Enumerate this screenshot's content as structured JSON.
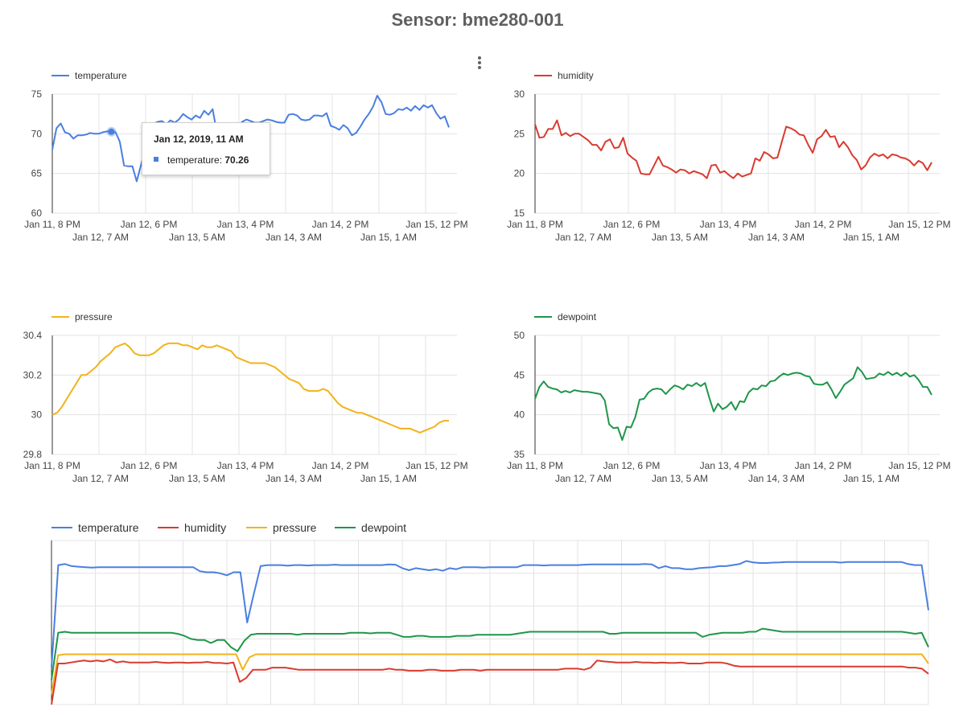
{
  "title": "Sensor: bme280-001",
  "menu_icon": "more-vert-icon",
  "tooltip": {
    "title": "Jan 12, 2019, 11 AM",
    "series": "temperature",
    "value": "70.26"
  },
  "colors": {
    "temperature": "#4a7fe0",
    "humidity": "#d93b30",
    "pressure": "#f2b31b",
    "dewpoint": "#20964a",
    "grid": "#e3e3e3",
    "axis": "#333333"
  },
  "chart_data": [
    {
      "type": "line",
      "legend": [
        "temperature"
      ],
      "x_ticks_top": [
        "Jan 11, 8 PM",
        "Jan 12, 6 PM",
        "Jan 13, 4 PM",
        "Jan 14, 2 PM",
        "Jan 15, 12 PM"
      ],
      "x_ticks_bottom": [
        "Jan 12, 7 AM",
        "Jan 13, 5 AM",
        "Jan 14, 3 AM",
        "Jan 15, 1 AM"
      ],
      "y_ticks": [
        "75",
        "70",
        "65",
        "60"
      ],
      "ylim": [
        60,
        75
      ],
      "grid": true,
      "series": [
        {
          "name": "temperature",
          "values": [
            68.0,
            70.7,
            71.3,
            70.2,
            70.0,
            69.4,
            69.8,
            69.8,
            69.9,
            70.1,
            70.0,
            70.0,
            70.2,
            70.3,
            70.26,
            70.2,
            69.0,
            66.0,
            65.9,
            65.9,
            64.0,
            66.0,
            68.0,
            70.5,
            71.3,
            71.5,
            71.6,
            71.2,
            71.7,
            71.4,
            71.8,
            72.5,
            72.1,
            71.8,
            72.3,
            72.0,
            72.9,
            72.4,
            73.1,
            70.2,
            70.0,
            69.9,
            70.0,
            70.3,
            71.0,
            71.5,
            71.8,
            71.6,
            71.4,
            71.4,
            71.6,
            71.8,
            71.7,
            71.5,
            71.4,
            71.4,
            72.4,
            72.5,
            72.3,
            71.8,
            71.7,
            71.8,
            72.3,
            72.3,
            72.2,
            72.6,
            71.0,
            70.8,
            70.5,
            71.1,
            70.7,
            69.8,
            70.1,
            70.9,
            71.8,
            72.5,
            73.4,
            74.8,
            74.0,
            72.5,
            72.4,
            72.6,
            73.1,
            73.0,
            73.3,
            72.9,
            73.5,
            73.0,
            73.6,
            73.3,
            73.6,
            72.6,
            71.9,
            72.2,
            70.8
          ]
        }
      ]
    },
    {
      "type": "line",
      "legend": [
        "humidity"
      ],
      "x_ticks_top": [
        "Jan 11, 8 PM",
        "Jan 12, 6 PM",
        "Jan 13, 4 PM",
        "Jan 14, 2 PM",
        "Jan 15, 12 PM"
      ],
      "x_ticks_bottom": [
        "Jan 12, 7 AM",
        "Jan 13, 5 AM",
        "Jan 14, 3 AM",
        "Jan 15, 1 AM"
      ],
      "y_ticks": [
        "30",
        "25",
        "20",
        "15"
      ],
      "ylim": [
        15,
        30
      ],
      "grid": true,
      "series": [
        {
          "name": "humidity",
          "values": [
            26.2,
            24.5,
            24.6,
            25.6,
            25.6,
            26.7,
            24.8,
            25.1,
            24.7,
            25.0,
            25.0,
            24.6,
            24.2,
            23.6,
            23.6,
            22.9,
            24.0,
            24.3,
            23.2,
            23.3,
            24.5,
            22.5,
            22.0,
            21.6,
            20.0,
            19.9,
            19.9,
            21.0,
            22.1,
            21.0,
            20.8,
            20.5,
            20.1,
            20.5,
            20.4,
            20.0,
            20.3,
            20.1,
            19.9,
            19.4,
            21.0,
            21.1,
            20.1,
            20.3,
            19.8,
            19.4,
            20.0,
            19.6,
            19.8,
            20.0,
            21.9,
            21.6,
            22.7,
            22.4,
            21.9,
            22.0,
            24.0,
            25.9,
            25.7,
            25.4,
            24.9,
            24.8,
            23.6,
            22.6,
            24.3,
            24.7,
            25.5,
            24.6,
            24.7,
            23.3,
            24.0,
            23.3,
            22.3,
            21.7,
            20.5,
            21.0,
            22.0,
            22.5,
            22.2,
            22.4,
            21.9,
            22.4,
            22.3,
            22.0,
            21.9,
            21.6,
            21.0,
            21.6,
            21.3,
            20.4,
            21.4
          ]
        }
      ]
    },
    {
      "type": "line",
      "legend": [
        "pressure"
      ],
      "x_ticks_top": [
        "Jan 11, 8 PM",
        "Jan 12, 6 PM",
        "Jan 13, 4 PM",
        "Jan 14, 2 PM",
        "Jan 15, 12 PM"
      ],
      "x_ticks_bottom": [
        "Jan 12, 7 AM",
        "Jan 13, 5 AM",
        "Jan 14, 3 AM",
        "Jan 15, 1 AM"
      ],
      "y_ticks": [
        "30.4",
        "30.2",
        "30",
        "29.8"
      ],
      "ylim": [
        29.8,
        30.4
      ],
      "grid": true,
      "series": [
        {
          "name": "pressure",
          "values": [
            30.0,
            30.01,
            30.04,
            30.08,
            30.12,
            30.16,
            30.2,
            30.2,
            30.22,
            30.24,
            30.27,
            30.29,
            30.31,
            30.34,
            30.35,
            30.36,
            30.34,
            30.31,
            30.3,
            30.3,
            30.3,
            30.31,
            30.33,
            30.35,
            30.36,
            30.36,
            30.36,
            30.35,
            30.35,
            30.34,
            30.33,
            30.35,
            30.34,
            30.34,
            30.35,
            30.34,
            30.33,
            30.32,
            30.29,
            30.28,
            30.27,
            30.26,
            30.26,
            30.26,
            30.26,
            30.25,
            30.24,
            30.22,
            30.2,
            30.18,
            30.17,
            30.16,
            30.13,
            30.12,
            30.12,
            30.12,
            30.13,
            30.12,
            30.09,
            30.06,
            30.04,
            30.03,
            30.02,
            30.01,
            30.01,
            30.0,
            29.99,
            29.98,
            29.97,
            29.96,
            29.95,
            29.94,
            29.93,
            29.93,
            29.93,
            29.92,
            29.91,
            29.92,
            29.93,
            29.94,
            29.96,
            29.97,
            29.97
          ]
        }
      ]
    },
    {
      "type": "line",
      "legend": [
        "dewpoint"
      ],
      "x_ticks_top": [
        "Jan 11, 8 PM",
        "Jan 12, 6 PM",
        "Jan 13, 4 PM",
        "Jan 14, 2 PM",
        "Jan 15, 12 PM"
      ],
      "x_ticks_bottom": [
        "Jan 12, 7 AM",
        "Jan 13, 5 AM",
        "Jan 14, 3 AM",
        "Jan 15, 1 AM"
      ],
      "y_ticks": [
        "50",
        "45",
        "40",
        "35"
      ],
      "ylim": [
        35,
        50
      ],
      "grid": true,
      "series": [
        {
          "name": "dewpoint",
          "values": [
            42.0,
            43.5,
            44.2,
            43.5,
            43.3,
            43.2,
            42.8,
            43.0,
            42.8,
            43.1,
            43.0,
            42.9,
            42.9,
            42.8,
            42.7,
            42.6,
            41.8,
            38.8,
            38.3,
            38.4,
            36.8,
            38.5,
            38.4,
            39.7,
            41.9,
            42.0,
            42.8,
            43.2,
            43.3,
            43.2,
            42.6,
            43.2,
            43.7,
            43.5,
            43.2,
            43.8,
            43.6,
            44.0,
            43.6,
            44.0,
            42.1,
            40.4,
            41.4,
            40.7,
            41.0,
            41.6,
            40.6,
            41.7,
            41.6,
            42.8,
            43.3,
            43.2,
            43.7,
            43.6,
            44.2,
            44.3,
            44.8,
            45.2,
            45.0,
            45.2,
            45.3,
            45.2,
            44.9,
            44.8,
            43.9,
            43.8,
            43.8,
            44.1,
            43.2,
            42.1,
            42.9,
            43.8,
            44.2,
            44.6,
            46.0,
            45.4,
            44.5,
            44.6,
            44.7,
            45.2,
            45.0,
            45.4,
            45.0,
            45.3,
            44.9,
            45.3,
            44.8,
            45.0,
            44.4,
            43.5,
            43.5,
            42.5
          ]
        }
      ]
    },
    {
      "type": "line",
      "legend": [
        "temperature",
        "humidity",
        "pressure",
        "dewpoint"
      ],
      "grid": true,
      "ylim": [
        0,
        80
      ],
      "series": [
        {
          "name": "temperature",
          "values": [
            18,
            68,
            68.5,
            67.5,
            67.2,
            67,
            66.8,
            67,
            67,
            67,
            67,
            67,
            67,
            67,
            67,
            67,
            67,
            67,
            67,
            67,
            67,
            67,
            65,
            64.5,
            64.5,
            64,
            63,
            64.5,
            64.5,
            40,
            54,
            67.5,
            68,
            68,
            68,
            67.7,
            68,
            68,
            67.8,
            68,
            68,
            68,
            68.2,
            68,
            68,
            68,
            68,
            68,
            68,
            68,
            68.3,
            68.2,
            66.5,
            65.5,
            66.5,
            66,
            65.5,
            66,
            65.2,
            66.5,
            66,
            67,
            67,
            67,
            66.8,
            67,
            67,
            67,
            67,
            67,
            68,
            68,
            68,
            67.8,
            68,
            68,
            68,
            68,
            68,
            68.2,
            68.3,
            68.3,
            68.3,
            68.3,
            68.3,
            68.3,
            68.3,
            68.3,
            68.5,
            68.3,
            66.5,
            67.5,
            66.5,
            66.5,
            66,
            66,
            66.5,
            66.8,
            67,
            67.5,
            67.5,
            68,
            68.5,
            70,
            69.3,
            69,
            69,
            69.2,
            69.3,
            69.5,
            69.5,
            69.5,
            69.5,
            69.5,
            69.5,
            69.5,
            69.5,
            69.2,
            69.5,
            69.5,
            69.5,
            69.5,
            69.5,
            69.5,
            69.5,
            69.5,
            69.5,
            68.5,
            68,
            68,
            46
          ]
        },
        {
          "name": "dewpoint",
          "values": [
            12,
            35,
            35.5,
            35,
            35,
            35,
            35,
            35,
            35,
            35,
            35,
            35,
            35,
            35,
            35,
            35,
            35,
            35,
            35,
            34.5,
            33.5,
            32,
            31.5,
            31.5,
            30,
            31.5,
            31.5,
            28,
            26,
            31,
            34,
            34.5,
            34.5,
            34.5,
            34.5,
            34.5,
            34.5,
            34,
            34.5,
            34.5,
            34.5,
            34.5,
            34.5,
            34.5,
            34.5,
            35,
            35,
            35,
            34.7,
            35,
            35,
            35,
            34,
            33,
            33,
            33.5,
            33.5,
            33,
            33,
            33,
            33,
            33.5,
            33.5,
            33.5,
            34,
            34,
            34,
            34,
            34,
            34,
            34.5,
            35,
            35.5,
            35.5,
            35.5,
            35.5,
            35.5,
            35.5,
            35.5,
            35.5,
            35.5,
            35.5,
            35.5,
            35.5,
            34.5,
            34.5,
            35,
            35,
            35,
            35,
            35,
            35,
            35,
            35,
            35,
            35,
            35,
            35,
            33,
            34,
            34.5,
            35,
            35,
            35,
            35,
            35.5,
            35.5,
            37,
            36.5,
            36,
            35.5,
            35.5,
            35.5,
            35.5,
            35.5,
            35.5,
            35.5,
            35.5,
            35.5,
            35.5,
            35.5,
            35.5,
            35.5,
            35.5,
            35.5,
            35.5,
            35.5,
            35.5,
            35.5,
            35,
            34.5,
            35,
            28
          ]
        },
        {
          "name": "pressure",
          "values": [
            5,
            24,
            24.5,
            24.5,
            24.5,
            24.5,
            24.5,
            24.5,
            24.5,
            24.5,
            24.5,
            24.5,
            24.5,
            24.5,
            24.5,
            24.5,
            24.5,
            24.5,
            24.5,
            24.5,
            24.5,
            24.5,
            24.5,
            24.5,
            24.5,
            24.5,
            24.5,
            24.5,
            24.5,
            17,
            23,
            24.5,
            24.5,
            24.5,
            24.5,
            24.5,
            24.5,
            24.5,
            24.5,
            24.5,
            24.5,
            24.5,
            24.5,
            24.5,
            24.5,
            24.5,
            24.5,
            24.5,
            24.5,
            24.5,
            24.5,
            24.5,
            24.5,
            24.5,
            24.5,
            24.5,
            24.5,
            24.5,
            24.5,
            24.5,
            24.5,
            24.5,
            24.5,
            24.5,
            24.5,
            24.5,
            24.5,
            24.5,
            24.5,
            24.5,
            24.5,
            24.5,
            24.5,
            24.5,
            24.5,
            24.5,
            24.5,
            24.5,
            24.5,
            24.5,
            24.5,
            24.5,
            24.5,
            24.5,
            24.5,
            24.5,
            24.5,
            24.5,
            24.5,
            24.5,
            24.5,
            24.5,
            24.5,
            24.5,
            24.5,
            24.5,
            24.5,
            24.5,
            24.5,
            24.5,
            24.5,
            24.5,
            24.5,
            24.5,
            24.5,
            24.5,
            24.5,
            24.5,
            24.5,
            24.5,
            24.5,
            24.5,
            24.5,
            24.5,
            24.5,
            24.5,
            24.5,
            24.5,
            24.5,
            24.5,
            24.5,
            24.5,
            24.5,
            24.5,
            24.5,
            24.5,
            24.5,
            24.5,
            24.5,
            24.5,
            24.5,
            24.5,
            24.5,
            20
          ]
        },
        {
          "name": "humidity",
          "values": [
            0,
            20,
            20,
            20.5,
            21,
            21.5,
            21,
            21.5,
            21,
            22,
            20.5,
            21,
            20.5,
            20.5,
            20.5,
            20.5,
            20.8,
            20.5,
            20.3,
            20.5,
            20.5,
            20.3,
            20.5,
            20.5,
            20.8,
            20.3,
            20.3,
            20,
            20.5,
            11,
            13,
            17,
            17,
            17,
            18,
            18,
            18,
            17.5,
            17,
            17,
            17,
            17,
            17,
            17,
            17,
            17,
            17,
            17,
            17,
            17,
            17,
            17,
            17.5,
            17,
            17,
            16.5,
            16.5,
            16.5,
            17,
            17,
            16.5,
            16.5,
            16.5,
            17,
            17,
            17,
            16.5,
            17,
            17,
            17,
            17,
            17,
            17,
            17,
            17,
            17,
            17,
            17,
            17,
            17.5,
            17.5,
            17.5,
            17,
            18,
            21.5,
            21,
            20.8,
            20.5,
            20.5,
            20.5,
            20.8,
            20.5,
            20.5,
            20.3,
            20.5,
            20.3,
            20.3,
            20.5,
            20,
            20,
            20,
            20.5,
            20.5,
            20.5,
            20,
            19,
            18.5,
            18.5,
            18.5,
            18.5,
            18.5,
            18.5,
            18.5,
            18.5,
            18.5,
            18.5,
            18.5,
            18.5,
            18.5,
            18.5,
            18.5,
            18.5,
            18.5,
            18.5,
            18.5,
            18.5,
            18.5,
            18.5,
            18.5,
            18.5,
            18.5,
            18.5,
            18,
            18,
            17.5,
            15
          ]
        }
      ]
    }
  ]
}
